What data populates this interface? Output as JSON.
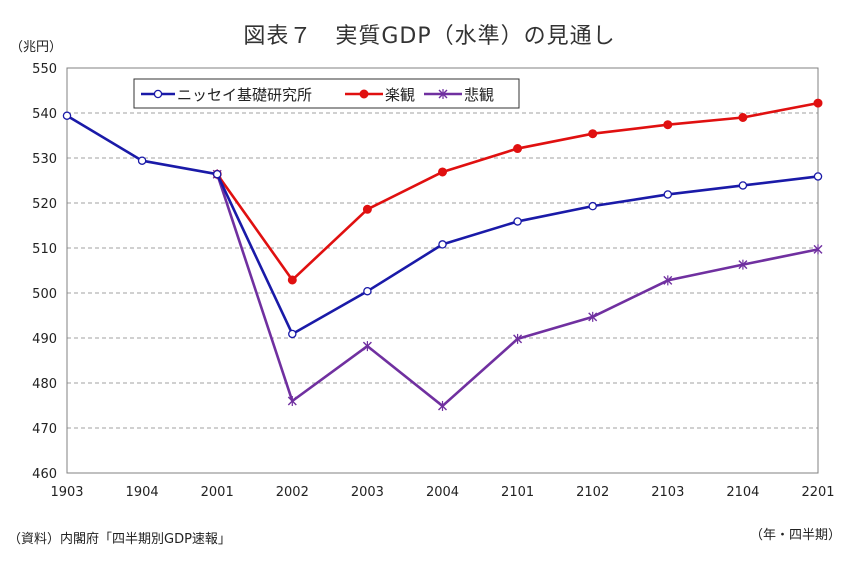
{
  "chart_data": {
    "type": "line",
    "title": "図表７　実質GDP（水準）の見通し",
    "ylabel": "（兆円）",
    "xlabel": "（年・四半期）",
    "source": "（資料）内閣府「四半期別GDP速報」",
    "categories": [
      "1903",
      "1904",
      "2001",
      "2002",
      "2003",
      "2004",
      "2101",
      "2102",
      "2103",
      "2104",
      "2201"
    ],
    "ylim": [
      460,
      550
    ],
    "yticks": [
      460,
      470,
      480,
      490,
      500,
      510,
      520,
      530,
      540,
      550
    ],
    "grid": true,
    "legend_position": "top-left",
    "series": [
      {
        "name": "ニッセイ基礎研究所",
        "color": "#1a1aa8",
        "marker": "open-circle",
        "values": [
          539.4,
          529.4,
          526.4,
          490.9,
          500.4,
          510.8,
          515.9,
          519.3,
          521.9,
          523.9,
          525.9
        ]
      },
      {
        "name": "楽観",
        "color": "#e01010",
        "marker": "filled-circle",
        "values": [
          null,
          null,
          526.4,
          502.9,
          518.6,
          526.9,
          532.1,
          535.4,
          537.4,
          539.0,
          542.2
        ]
      },
      {
        "name": "悲観",
        "color": "#7030a0",
        "marker": "star",
        "values": [
          null,
          null,
          526.4,
          476.0,
          488.2,
          474.9,
          489.8,
          494.7,
          502.8,
          506.3,
          509.7
        ]
      }
    ]
  }
}
